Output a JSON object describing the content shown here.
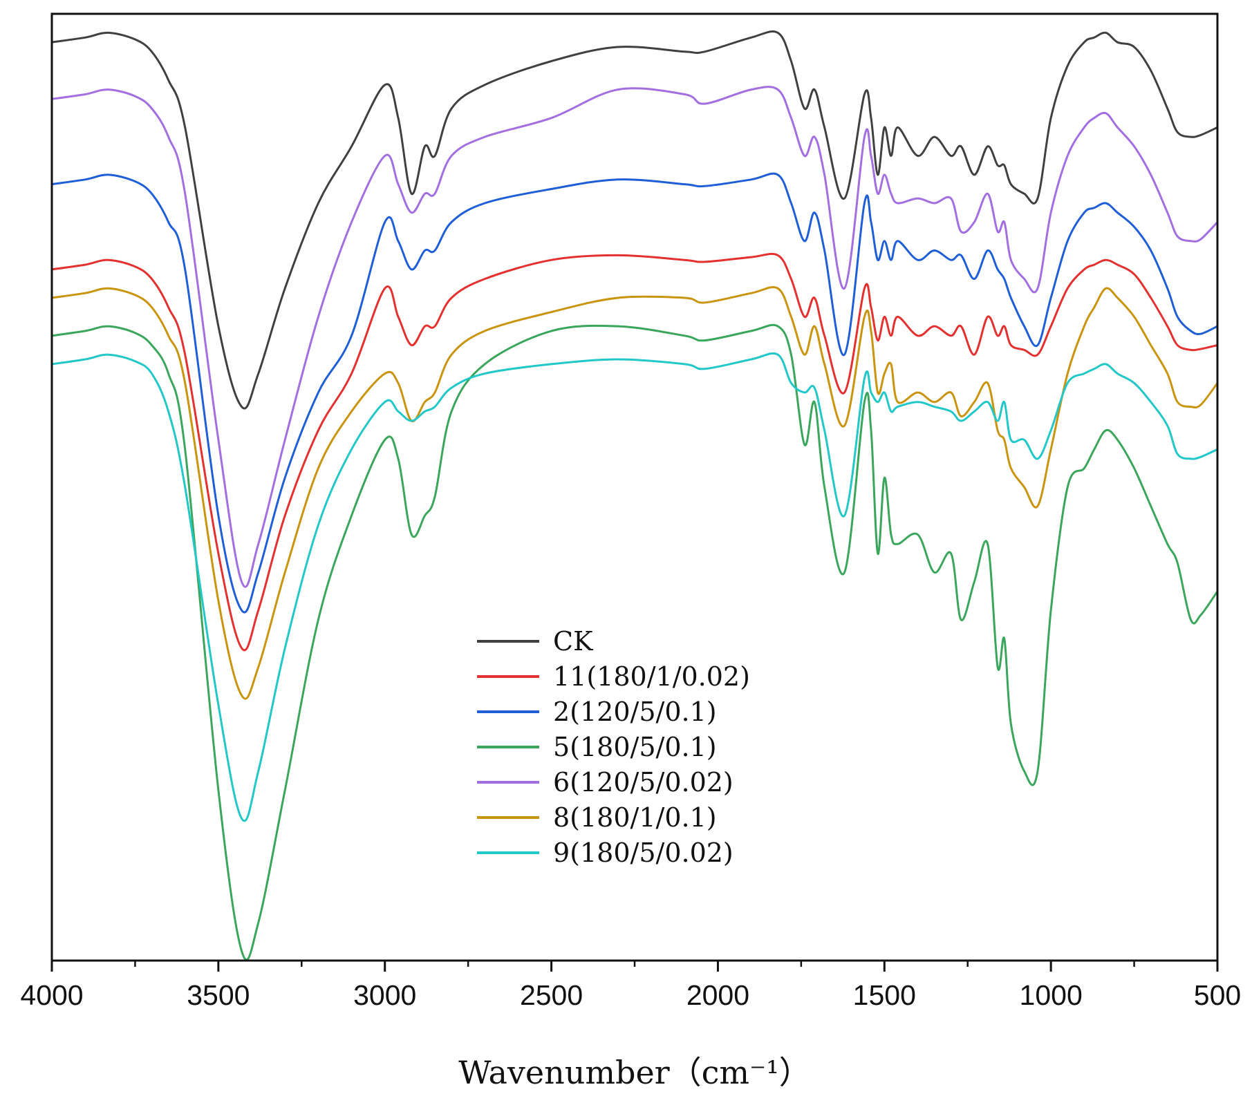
{
  "chart_data": {
    "type": "line",
    "title": "",
    "xlabel": "Wavenumber（cm⁻¹）",
    "ylabel": "",
    "xlim": [
      4000,
      500
    ],
    "x_inverted": true,
    "ylim": [
      0,
      100
    ],
    "grid": false,
    "legend_position": "center",
    "xticks": [
      4000,
      3500,
      3000,
      2500,
      2000,
      1500,
      1000,
      500
    ],
    "xtick_labels": [
      "4000",
      "3500",
      "3000",
      "2500",
      "2000",
      "1500",
      "1000",
      "500"
    ],
    "series": [
      {
        "name": "CK",
        "color": "#404040",
        "x": [
          4000,
          3900,
          3830,
          3750,
          3700,
          3650,
          3600,
          3500,
          3430,
          3380,
          3300,
          3200,
          3100,
          3000,
          2960,
          2920,
          2880,
          2850,
          2800,
          2700,
          2500,
          2300,
          2100,
          2040,
          1900,
          1820,
          1780,
          1740,
          1710,
          1680,
          1620,
          1560,
          1540,
          1520,
          1500,
          1480,
          1460,
          1400,
          1350,
          1300,
          1270,
          1230,
          1190,
          1160,
          1140,
          1120,
          1080,
          1040,
          1000,
          950,
          900,
          870,
          835,
          800,
          750,
          700,
          650,
          620,
          580,
          550,
          500
        ],
        "y": [
          97,
          97.5,
          98,
          97.3,
          96,
          93,
          88,
          67,
          58.5,
          62,
          71,
          80,
          86,
          92.5,
          89,
          81,
          86,
          85,
          90,
          92.5,
          95,
          96.5,
          96,
          96,
          97.5,
          98,
          95,
          90,
          92,
          88,
          80.5,
          91.5,
          89,
          83,
          88,
          85,
          88,
          85,
          87,
          85,
          86,
          83,
          86,
          84,
          84,
          82,
          81,
          80.5,
          89,
          94.5,
          97,
          97.5,
          98,
          97,
          96.5,
          94,
          90,
          87.5,
          87,
          87.2,
          88
        ]
      },
      {
        "name": "11(180/1/0.02)",
        "color": "#e53030",
        "x": [
          4000,
          3900,
          3830,
          3750,
          3700,
          3650,
          3600,
          3500,
          3430,
          3380,
          3300,
          3200,
          3100,
          3000,
          2960,
          2920,
          2880,
          2850,
          2800,
          2700,
          2500,
          2300,
          2100,
          2040,
          1900,
          1820,
          1780,
          1740,
          1710,
          1680,
          1620,
          1560,
          1540,
          1520,
          1500,
          1480,
          1460,
          1400,
          1350,
          1300,
          1270,
          1230,
          1190,
          1160,
          1140,
          1120,
          1080,
          1040,
          1000,
          950,
          900,
          870,
          835,
          800,
          750,
          700,
          650,
          620,
          580,
          550,
          500
        ],
        "y": [
          73,
          73.5,
          74,
          73.3,
          72,
          69,
          64,
          43,
          33,
          37,
          47,
          56,
          62,
          71,
          68,
          65,
          67,
          67,
          70,
          72,
          74,
          74.5,
          74,
          73.8,
          74.3,
          74.5,
          72,
          68,
          70,
          66,
          60,
          71,
          69,
          65.5,
          68,
          66,
          68,
          66,
          67,
          66,
          67,
          64,
          68,
          66,
          67,
          65,
          64.5,
          64,
          67,
          71,
          73,
          73.5,
          74,
          73.5,
          72.5,
          70,
          67,
          65,
          64.5,
          64.6,
          65
        ]
      },
      {
        "name": "2(120/5/0.1)",
        "color": "#1e5ed6",
        "x": [
          4000,
          3900,
          3830,
          3750,
          3700,
          3650,
          3600,
          3500,
          3430,
          3380,
          3300,
          3200,
          3100,
          3000,
          2960,
          2920,
          2880,
          2850,
          2800,
          2700,
          2500,
          2300,
          2100,
          2040,
          1900,
          1820,
          1780,
          1740,
          1710,
          1680,
          1620,
          1560,
          1540,
          1520,
          1500,
          1480,
          1460,
          1400,
          1350,
          1300,
          1270,
          1230,
          1190,
          1160,
          1140,
          1120,
          1080,
          1040,
          1000,
          950,
          900,
          870,
          835,
          800,
          750,
          700,
          650,
          620,
          580,
          550,
          500
        ],
        "y": [
          82,
          82.5,
          83,
          82.3,
          81,
          78,
          73,
          47,
          37,
          41,
          51,
          60,
          66,
          78,
          76,
          73,
          75,
          75,
          78,
          80,
          81.5,
          82.5,
          82,
          81.8,
          82.5,
          83,
          80,
          76,
          79,
          75,
          64,
          80,
          78,
          74,
          76,
          74,
          76,
          74,
          75,
          74,
          74.5,
          72,
          75,
          73,
          72,
          70,
          67,
          65,
          70,
          76,
          79,
          79.5,
          80,
          79,
          77.5,
          75,
          71,
          68,
          66.5,
          66.2,
          67
        ]
      },
      {
        "name": "5(180/5/0.1)",
        "color": "#3aa65c",
        "x": [
          4000,
          3900,
          3830,
          3750,
          3700,
          3650,
          3600,
          3500,
          3430,
          3380,
          3300,
          3200,
          3100,
          3000,
          2960,
          2920,
          2880,
          2850,
          2800,
          2700,
          2500,
          2300,
          2100,
          2040,
          1900,
          1820,
          1780,
          1740,
          1710,
          1680,
          1620,
          1560,
          1540,
          1520,
          1500,
          1480,
          1460,
          1400,
          1350,
          1300,
          1270,
          1230,
          1190,
          1160,
          1140,
          1120,
          1080,
          1040,
          1000,
          950,
          900,
          870,
          835,
          800,
          750,
          700,
          650,
          620,
          580,
          550,
          500
        ],
        "y": [
          66,
          66.5,
          67,
          66.3,
          65,
          62,
          54,
          18,
          1,
          4,
          18,
          36,
          47,
          55,
          53,
          45,
          47,
          49,
          58,
          63,
          66.5,
          67,
          66,
          65.5,
          66.5,
          67,
          64,
          54.5,
          59,
          50,
          41,
          59,
          56,
          43,
          51,
          45,
          44,
          45,
          41,
          43,
          36,
          40,
          44,
          31,
          34,
          25,
          20,
          20,
          37,
          50,
          52,
          54,
          56,
          55,
          52,
          48,
          44,
          42,
          36,
          36.5,
          39
        ]
      },
      {
        "name": "6(120/5/0.02)",
        "color": "#a26ee0",
        "x": [
          4000,
          3900,
          3830,
          3750,
          3700,
          3650,
          3600,
          3500,
          3430,
          3380,
          3300,
          3200,
          3100,
          3000,
          2960,
          2920,
          2880,
          2850,
          2800,
          2700,
          2500,
          2300,
          2100,
          2040,
          1900,
          1820,
          1780,
          1740,
          1710,
          1680,
          1620,
          1560,
          1540,
          1520,
          1500,
          1480,
          1460,
          1400,
          1350,
          1300,
          1270,
          1230,
          1190,
          1160,
          1140,
          1120,
          1080,
          1040,
          1000,
          950,
          900,
          870,
          835,
          800,
          750,
          700,
          650,
          620,
          580,
          550,
          500
        ],
        "y": [
          91,
          91.5,
          92,
          91.3,
          90,
          87,
          81,
          55,
          40,
          44,
          55,
          68,
          78,
          85,
          82,
          79,
          81,
          81,
          85,
          87,
          89,
          92,
          91.5,
          90.5,
          92,
          92,
          89,
          85,
          87,
          83,
          71,
          87,
          85,
          81,
          83,
          81,
          80,
          80.5,
          80,
          80.5,
          77,
          78,
          81,
          77,
          78,
          74,
          72,
          71,
          79,
          85,
          88,
          89,
          89.5,
          88,
          86,
          83,
          79,
          76.5,
          76,
          76.2,
          78
        ]
      },
      {
        "name": "8(180/1/0.1)",
        "color": "#c9940e",
        "x": [
          4000,
          3900,
          3830,
          3750,
          3700,
          3650,
          3600,
          3500,
          3430,
          3380,
          3300,
          3200,
          3100,
          3000,
          2960,
          2920,
          2880,
          2850,
          2800,
          2700,
          2500,
          2300,
          2100,
          2040,
          1900,
          1820,
          1780,
          1740,
          1710,
          1680,
          1620,
          1560,
          1540,
          1520,
          1500,
          1480,
          1460,
          1400,
          1350,
          1300,
          1270,
          1230,
          1190,
          1160,
          1140,
          1120,
          1080,
          1040,
          1000,
          950,
          900,
          870,
          835,
          800,
          750,
          700,
          650,
          620,
          580,
          550,
          500
        ],
        "y": [
          70,
          70.5,
          71,
          70.3,
          69,
          66,
          61,
          38,
          28,
          31,
          41,
          52,
          58,
          62,
          61,
          57,
          59,
          60,
          64,
          66.5,
          68.5,
          70,
          70,
          69.5,
          70.5,
          71,
          68,
          64,
          67,
          63,
          56.5,
          68,
          66.5,
          60,
          62,
          63,
          59,
          60,
          59,
          60,
          57.5,
          59,
          61,
          56,
          55,
          52,
          50,
          48,
          54,
          62,
          67,
          69,
          71,
          70,
          68,
          65,
          62,
          59,
          58.5,
          58.7,
          61
        ]
      },
      {
        "name": "9(180/5/0.02)",
        "color": "#22c7c7",
        "x": [
          4000,
          3900,
          3830,
          3750,
          3700,
          3650,
          3600,
          3500,
          3430,
          3380,
          3300,
          3200,
          3100,
          3000,
          2960,
          2920,
          2880,
          2850,
          2800,
          2700,
          2500,
          2300,
          2100,
          2040,
          1900,
          1820,
          1780,
          1740,
          1710,
          1680,
          1620,
          1560,
          1540,
          1520,
          1500,
          1480,
          1460,
          1400,
          1350,
          1300,
          1270,
          1230,
          1190,
          1160,
          1140,
          1120,
          1080,
          1040,
          1000,
          950,
          900,
          870,
          835,
          800,
          750,
          700,
          650,
          620,
          580,
          550,
          500
        ],
        "y": [
          63,
          63.5,
          64,
          63.3,
          62,
          58,
          50,
          27,
          15,
          20,
          33,
          46,
          54,
          59,
          58,
          57,
          58,
          58.5,
          60.5,
          62,
          63,
          63.5,
          63,
          62.5,
          63.5,
          64,
          61,
          60,
          60.5,
          56,
          47,
          61.5,
          60,
          59,
          60,
          58,
          58.5,
          59,
          58.5,
          58,
          57,
          58,
          59,
          57,
          59,
          55,
          55,
          53,
          56,
          61,
          62,
          62.5,
          63,
          62,
          61,
          59,
          56.5,
          53.5,
          53,
          53.2,
          54
        ]
      }
    ]
  }
}
